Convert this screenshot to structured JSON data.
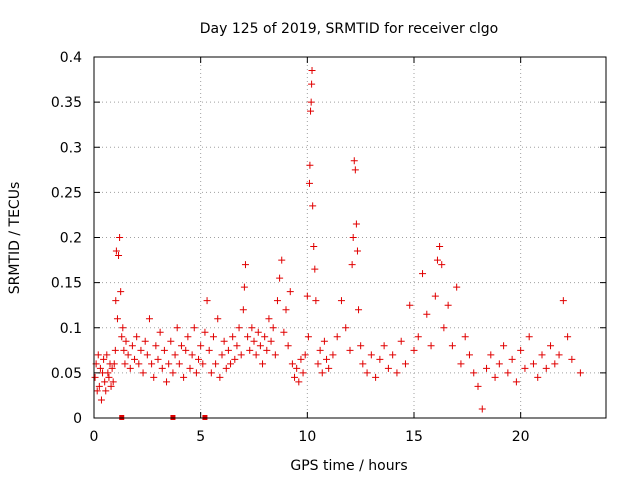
{
  "chart_data": {
    "type": "scatter",
    "title": "Day 125 of 2019, SRMTID for receiver clgo",
    "xlabel": "GPS time / hours",
    "ylabel": "SRMTID / TECUs",
    "xlim": [
      0,
      24
    ],
    "ylim": [
      0,
      0.4
    ],
    "x_ticks": [
      0,
      5,
      10,
      15,
      20
    ],
    "y_ticks": [
      0,
      0.05,
      0.1,
      0.15,
      0.2,
      0.25,
      0.3,
      0.35,
      0.4
    ],
    "x_tick_labels": [
      "0",
      "5",
      "10",
      "15",
      "20"
    ],
    "y_tick_labels": [
      "0",
      "0.05",
      "0.1",
      "0.15",
      "0.2",
      "0.25",
      "0.3",
      "0.35",
      "0.4"
    ],
    "grid": true,
    "marker": "plus",
    "color": "#e00000",
    "series": [
      {
        "name": "SRMTID",
        "points": [
          [
            0.05,
            0.045
          ],
          [
            0.1,
            0.06
          ],
          [
            0.15,
            0.03
          ],
          [
            0.2,
            0.07
          ],
          [
            0.25,
            0.035
          ],
          [
            0.3,
            0.055
          ],
          [
            0.35,
            0.02
          ],
          [
            0.4,
            0.05
          ],
          [
            0.45,
            0.065
          ],
          [
            0.5,
            0.04
          ],
          [
            0.55,
            0.03
          ],
          [
            0.6,
            0.07
          ],
          [
            0.65,
            0.05
          ],
          [
            0.7,
            0.045
          ],
          [
            0.75,
            0.06
          ],
          [
            0.8,
            0.035
          ],
          [
            0.85,
            0.055
          ],
          [
            0.9,
            0.04
          ],
          [
            0.95,
            0.06
          ],
          [
            1.0,
            0.075
          ],
          [
            1.02,
            0.13
          ],
          [
            1.05,
            0.185
          ],
          [
            1.1,
            0.11
          ],
          [
            1.15,
            0.18
          ],
          [
            1.2,
            0.2
          ],
          [
            1.25,
            0.14
          ],
          [
            1.3,
            0.09
          ],
          [
            1.35,
            0.1
          ],
          [
            1.4,
            0.075
          ],
          [
            1.45,
            0.06
          ],
          [
            1.5,
            0.085
          ],
          [
            1.6,
            0.07
          ],
          [
            1.7,
            0.055
          ],
          [
            1.8,
            0.08
          ],
          [
            1.9,
            0.065
          ],
          [
            2.0,
            0.09
          ],
          [
            2.1,
            0.06
          ],
          [
            2.2,
            0.075
          ],
          [
            2.3,
            0.05
          ],
          [
            2.4,
            0.085
          ],
          [
            2.5,
            0.07
          ],
          [
            2.6,
            0.11
          ],
          [
            2.7,
            0.06
          ],
          [
            2.8,
            0.045
          ],
          [
            2.9,
            0.08
          ],
          [
            3.0,
            0.065
          ],
          [
            3.1,
            0.095
          ],
          [
            3.2,
            0.055
          ],
          [
            3.3,
            0.075
          ],
          [
            3.4,
            0.04
          ],
          [
            3.5,
            0.06
          ],
          [
            3.6,
            0.085
          ],
          [
            3.7,
            0.05
          ],
          [
            3.8,
            0.07
          ],
          [
            3.9,
            0.1
          ],
          [
            4.0,
            0.06
          ],
          [
            4.1,
            0.08
          ],
          [
            4.2,
            0.045
          ],
          [
            4.3,
            0.075
          ],
          [
            4.4,
            0.09
          ],
          [
            4.5,
            0.055
          ],
          [
            4.6,
            0.07
          ],
          [
            4.7,
            0.1
          ],
          [
            4.8,
            0.05
          ],
          [
            4.9,
            0.065
          ],
          [
            5.0,
            0.08
          ],
          [
            5.1,
            0.06
          ],
          [
            5.2,
            0.095
          ],
          [
            5.3,
            0.13
          ],
          [
            5.4,
            0.075
          ],
          [
            5.5,
            0.05
          ],
          [
            5.6,
            0.09
          ],
          [
            5.7,
            0.06
          ],
          [
            5.8,
            0.11
          ],
          [
            5.9,
            0.045
          ],
          [
            6.0,
            0.07
          ],
          [
            6.1,
            0.085
          ],
          [
            6.2,
            0.055
          ],
          [
            6.3,
            0.075
          ],
          [
            6.4,
            0.06
          ],
          [
            6.5,
            0.09
          ],
          [
            6.6,
            0.065
          ],
          [
            6.7,
            0.08
          ],
          [
            6.8,
            0.1
          ],
          [
            6.9,
            0.07
          ],
          [
            7.0,
            0.12
          ],
          [
            7.05,
            0.145
          ],
          [
            7.1,
            0.17
          ],
          [
            7.2,
            0.09
          ],
          [
            7.3,
            0.075
          ],
          [
            7.4,
            0.1
          ],
          [
            7.5,
            0.085
          ],
          [
            7.6,
            0.07
          ],
          [
            7.7,
            0.095
          ],
          [
            7.8,
            0.08
          ],
          [
            7.9,
            0.06
          ],
          [
            8.0,
            0.09
          ],
          [
            8.1,
            0.075
          ],
          [
            8.2,
            0.11
          ],
          [
            8.3,
            0.085
          ],
          [
            8.4,
            0.1
          ],
          [
            8.5,
            0.07
          ],
          [
            8.6,
            0.13
          ],
          [
            8.7,
            0.155
          ],
          [
            8.8,
            0.175
          ],
          [
            8.9,
            0.095
          ],
          [
            9.0,
            0.12
          ],
          [
            9.1,
            0.08
          ],
          [
            9.2,
            0.14
          ],
          [
            9.3,
            0.06
          ],
          [
            9.4,
            0.045
          ],
          [
            9.5,
            0.055
          ],
          [
            9.6,
            0.04
          ],
          [
            9.7,
            0.065
          ],
          [
            9.8,
            0.05
          ],
          [
            9.9,
            0.07
          ],
          [
            10.0,
            0.135
          ],
          [
            10.05,
            0.09
          ],
          [
            10.1,
            0.26
          ],
          [
            10.12,
            0.28
          ],
          [
            10.15,
            0.34
          ],
          [
            10.18,
            0.35
          ],
          [
            10.2,
            0.37
          ],
          [
            10.22,
            0.385
          ],
          [
            10.25,
            0.235
          ],
          [
            10.3,
            0.19
          ],
          [
            10.35,
            0.165
          ],
          [
            10.4,
            0.13
          ],
          [
            10.5,
            0.06
          ],
          [
            10.6,
            0.075
          ],
          [
            10.7,
            0.05
          ],
          [
            10.8,
            0.085
          ],
          [
            10.9,
            0.065
          ],
          [
            11.0,
            0.055
          ],
          [
            11.2,
            0.07
          ],
          [
            11.4,
            0.09
          ],
          [
            11.6,
            0.13
          ],
          [
            11.8,
            0.1
          ],
          [
            12.0,
            0.075
          ],
          [
            12.1,
            0.17
          ],
          [
            12.15,
            0.2
          ],
          [
            12.2,
            0.285
          ],
          [
            12.25,
            0.275
          ],
          [
            12.3,
            0.215
          ],
          [
            12.35,
            0.185
          ],
          [
            12.4,
            0.12
          ],
          [
            12.5,
            0.08
          ],
          [
            12.6,
            0.06
          ],
          [
            12.8,
            0.05
          ],
          [
            13.0,
            0.07
          ],
          [
            13.2,
            0.045
          ],
          [
            13.4,
            0.065
          ],
          [
            13.6,
            0.08
          ],
          [
            13.8,
            0.055
          ],
          [
            14.0,
            0.07
          ],
          [
            14.2,
            0.05
          ],
          [
            14.4,
            0.085
          ],
          [
            14.6,
            0.06
          ],
          [
            14.8,
            0.125
          ],
          [
            15.0,
            0.075
          ],
          [
            15.2,
            0.09
          ],
          [
            15.4,
            0.16
          ],
          [
            15.6,
            0.115
          ],
          [
            15.8,
            0.08
          ],
          [
            16.0,
            0.135
          ],
          [
            16.1,
            0.175
          ],
          [
            16.2,
            0.19
          ],
          [
            16.3,
            0.17
          ],
          [
            16.4,
            0.1
          ],
          [
            16.6,
            0.125
          ],
          [
            16.8,
            0.08
          ],
          [
            17.0,
            0.145
          ],
          [
            17.2,
            0.06
          ],
          [
            17.4,
            0.09
          ],
          [
            17.6,
            0.07
          ],
          [
            17.8,
            0.05
          ],
          [
            18.0,
            0.035
          ],
          [
            18.2,
            0.01
          ],
          [
            18.4,
            0.055
          ],
          [
            18.6,
            0.07
          ],
          [
            18.8,
            0.045
          ],
          [
            19.0,
            0.06
          ],
          [
            19.2,
            0.08
          ],
          [
            19.4,
            0.05
          ],
          [
            19.6,
            0.065
          ],
          [
            19.8,
            0.04
          ],
          [
            20.0,
            0.075
          ],
          [
            20.2,
            0.055
          ],
          [
            20.4,
            0.09
          ],
          [
            20.6,
            0.06
          ],
          [
            20.8,
            0.045
          ],
          [
            21.0,
            0.07
          ],
          [
            21.2,
            0.055
          ],
          [
            21.4,
            0.08
          ],
          [
            21.6,
            0.06
          ],
          [
            21.8,
            0.07
          ],
          [
            22.0,
            0.13
          ],
          [
            22.2,
            0.09
          ],
          [
            22.4,
            0.065
          ],
          [
            22.8,
            0.05
          ]
        ]
      }
    ],
    "gap_markers": [
      1.3,
      3.7,
      5.2
    ]
  }
}
